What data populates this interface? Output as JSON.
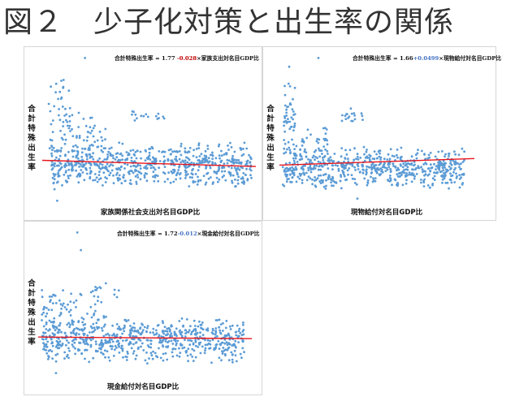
{
  "page": {
    "title": "図２　少子化対策と出生率の関係"
  },
  "colors": {
    "points": "#5b9bd5",
    "trend": "#e8141c",
    "negative_coefficient": "#c00000",
    "positive_coefficient": "#4472c4"
  },
  "chart_data": [
    {
      "type": "scatter",
      "title": "",
      "equation": {
        "prefix": "合計特殊出生率 = 1.77 ",
        "coefficient": "-0.028",
        "suffix": "×家族支出対名目GDP比"
      },
      "xlabel": "家族関係社会支出対名目GDP比",
      "ylabel": "合計特殊出生率",
      "xlim": [
        0,
        5
      ],
      "ylim": [
        0.8,
        4.2
      ],
      "grid": false,
      "trend": {
        "intercept": 1.77,
        "slope": -0.028
      },
      "clusters": [
        {
          "xmin": 0.2,
          "xmax": 4.9,
          "ymin": 1.1,
          "ymax": 2.2,
          "n": 680
        },
        {
          "xmin": 0.1,
          "xmax": 0.7,
          "ymin": 1.4,
          "ymax": 3.8,
          "n": 55
        },
        {
          "xmin": 0.7,
          "xmax": 1.5,
          "ymin": 1.6,
          "ymax": 2.9,
          "n": 45
        },
        {
          "xmin": 2.1,
          "xmax": 2.9,
          "ymin": 2.6,
          "ymax": 3.0,
          "n": 16
        }
      ],
      "outliers": [
        {
          "x": 1.0,
          "y": 4.1
        },
        {
          "x": 0.35,
          "y": 0.85
        },
        {
          "x": 0.5,
          "y": 3.6
        }
      ]
    },
    {
      "type": "scatter",
      "title": "",
      "equation": {
        "prefix": "合計特殊出生率 = 1.66",
        "coefficient": "+0.0499",
        "suffix": "×現物給付対名目GDP比"
      },
      "xlabel": "現物給付対名目GDP比",
      "ylabel": "合計特殊出生率",
      "xlim": [
        0,
        3
      ],
      "ylim": [
        0.8,
        4.2
      ],
      "grid": false,
      "trend": {
        "intercept": 1.66,
        "slope": 0.0499
      },
      "clusters": [
        {
          "xmin": 0.05,
          "xmax": 2.85,
          "ymin": 1.1,
          "ymax": 2.1,
          "n": 640
        },
        {
          "xmin": 0.05,
          "xmax": 0.25,
          "ymin": 1.5,
          "ymax": 3.7,
          "n": 50
        },
        {
          "xmin": 0.25,
          "xmax": 0.75,
          "ymin": 1.6,
          "ymax": 2.6,
          "n": 40
        },
        {
          "xmin": 0.95,
          "xmax": 1.3,
          "ymin": 2.6,
          "ymax": 3.0,
          "n": 18
        }
      ],
      "outliers": [
        {
          "x": 0.6,
          "y": 4.1
        },
        {
          "x": 0.15,
          "y": 3.9
        },
        {
          "x": 1.2,
          "y": 0.9
        }
      ]
    },
    {
      "type": "scatter",
      "title": "",
      "equation": {
        "prefix": "合計特殊出生率 = 1.72",
        "coefficient": "-0.012",
        "suffix": "×現金給付対名目GDP比"
      },
      "xlabel": "現金給付対名目GDP比",
      "ylabel": "合計特殊出生率",
      "xlim": [
        0,
        3
      ],
      "ylim": [
        0.8,
        4.2
      ],
      "grid": false,
      "trend": {
        "intercept": 1.72,
        "slope": -0.012
      },
      "clusters": [
        {
          "xmin": 0.05,
          "xmax": 2.9,
          "ymin": 1.1,
          "ymax": 2.2,
          "n": 680
        },
        {
          "xmin": 0.05,
          "xmax": 0.35,
          "ymin": 1.5,
          "ymax": 3.0,
          "n": 45
        },
        {
          "xmin": 0.35,
          "xmax": 1.0,
          "ymin": 1.6,
          "ymax": 2.9,
          "n": 40
        },
        {
          "xmin": 0.75,
          "xmax": 1.15,
          "ymin": 2.5,
          "ymax": 3.0,
          "n": 15
        }
      ],
      "outliers": [
        {
          "x": 0.55,
          "y": 4.1
        },
        {
          "x": 0.6,
          "y": 3.7
        },
        {
          "x": 0.25,
          "y": 0.9
        }
      ]
    }
  ]
}
